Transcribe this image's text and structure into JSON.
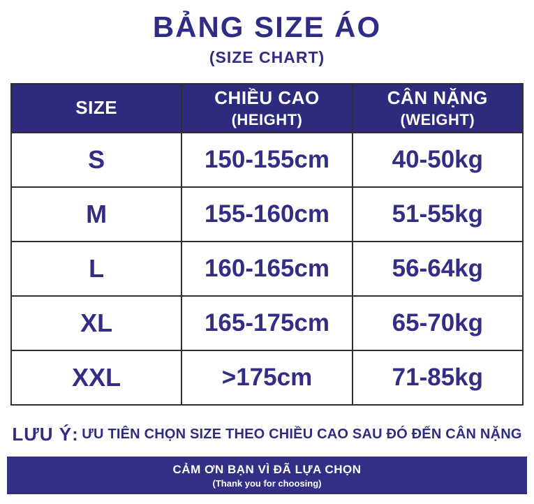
{
  "header": {
    "title": "BẢNG SIZE ÁO",
    "subtitle": "(SIZE CHART)"
  },
  "table": {
    "columns": [
      {
        "label": "SIZE",
        "sublabel": ""
      },
      {
        "label": "CHIỀU CAO",
        "sublabel": "(HEIGHT)"
      },
      {
        "label": "CÂN NẶNG",
        "sublabel": "(WEIGHT)"
      }
    ],
    "rows": [
      {
        "size": "S",
        "height": "150-155cm",
        "weight": "40-50kg"
      },
      {
        "size": "M",
        "height": "155-160cm",
        "weight": "51-55kg"
      },
      {
        "size": "L",
        "height": "160-165cm",
        "weight": "56-64kg"
      },
      {
        "size": "XL",
        "height": "165-175cm",
        "weight": "65-70kg"
      },
      {
        "size": "XXL",
        "height": ">175cm",
        "weight": "71-85kg"
      }
    ]
  },
  "note": {
    "label": "LƯU Ý:",
    "text": "ƯU TIÊN CHỌN SIZE THEO CHIỀU CAO SAU ĐÓ ĐẾN CÂN NẶNG"
  },
  "footer": {
    "line1": "CẢM ƠN BẠN VÌ ĐÃ LỰA CHỌN",
    "line2": "(Thank you for choosing)"
  },
  "colors": {
    "header_bg": "#2e2b7e",
    "footer_bg": "#332f85",
    "text_navy": "#2f2c85",
    "border": "#2f2f2f"
  },
  "chart_data": {
    "type": "table",
    "title": "BẢNG SIZE ÁO (SIZE CHART)",
    "columns": [
      "SIZE",
      "CHIỀU CAO (HEIGHT)",
      "CÂN NẶNG (WEIGHT)"
    ],
    "rows": [
      [
        "S",
        "150-155cm",
        "40-50kg"
      ],
      [
        "M",
        "155-160cm",
        "51-55kg"
      ],
      [
        "L",
        "160-165cm",
        "56-64kg"
      ],
      [
        "XL",
        "165-175cm",
        "65-70kg"
      ],
      [
        "XXL",
        ">175cm",
        "71-85kg"
      ]
    ],
    "note": "LƯU Ý: ƯU TIÊN CHỌN SIZE THEO CHIỀU CAO SAU ĐÓ ĐẾN CÂN NẶNG",
    "footer": "CẢM ƠN BẠN VÌ ĐÃ LỰA CHỌN (Thank you for choosing)"
  }
}
